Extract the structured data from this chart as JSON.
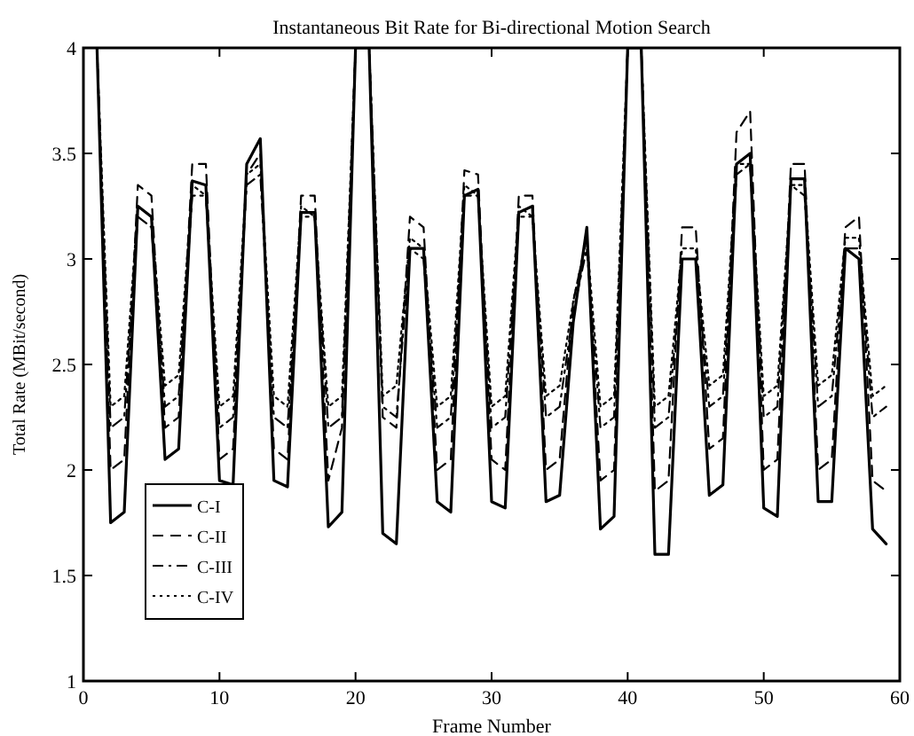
{
  "chart_data": {
    "type": "line",
    "title": "Instantaneous Bit Rate for Bi-directional Motion Search",
    "xlabel": "Frame Number",
    "ylabel": "Total Rate (MBit/second)",
    "x": [
      1,
      2,
      3,
      4,
      5,
      6,
      7,
      8,
      9,
      10,
      11,
      12,
      13,
      14,
      15,
      16,
      17,
      18,
      19,
      20,
      21,
      22,
      23,
      24,
      25,
      26,
      27,
      28,
      29,
      30,
      31,
      32,
      33,
      34,
      35,
      36,
      37,
      38,
      39,
      40,
      41,
      42,
      43,
      44,
      45,
      46,
      47,
      48,
      49,
      50,
      51,
      52,
      53,
      54,
      55,
      56,
      57,
      58,
      59
    ],
    "xlim": [
      0,
      60
    ],
    "xticks": [
      0,
      10,
      20,
      30,
      40,
      50,
      60
    ],
    "ylim": [
      1,
      4
    ],
    "yticks": [
      1,
      1.5,
      2,
      2.5,
      3,
      3.5,
      4
    ],
    "grid": false,
    "legend": "bottom left",
    "marker": "none",
    "series": [
      {
        "name": "C-I",
        "color": "#000000",
        "line_style": "solid",
        "values": [
          4,
          1.75,
          1.8,
          3.25,
          3.2,
          2.05,
          2.1,
          3.37,
          3.35,
          1.95,
          1.93,
          3.45,
          3.57,
          1.95,
          1.92,
          3.22,
          3.22,
          1.73,
          1.8,
          4,
          4,
          1.7,
          1.65,
          3.05,
          3.05,
          1.85,
          1.8,
          3.3,
          3.33,
          1.85,
          1.82,
          3.22,
          3.25,
          1.85,
          1.88,
          2.7,
          3.15,
          1.72,
          1.78,
          4,
          4,
          1.6,
          1.6,
          3,
          3,
          1.88,
          1.93,
          3.45,
          3.5,
          1.82,
          1.78,
          3.38,
          3.38,
          1.85,
          1.85,
          3.05,
          3,
          1.72,
          1.65
        ]
      },
      {
        "name": "C-II",
        "color": "#000000",
        "line_style": "dashed",
        "values": [
          4,
          2,
          2.05,
          3.35,
          3.3,
          2.2,
          2.25,
          3.45,
          3.45,
          2.05,
          2.1,
          3.4,
          3.5,
          2.1,
          2.05,
          3.3,
          3.3,
          1.95,
          2.2,
          4,
          4,
          2.25,
          2.2,
          3.2,
          3.15,
          2,
          2.05,
          3.42,
          3.4,
          2.05,
          2,
          3.3,
          3.3,
          2,
          2.05,
          2.8,
          3.1,
          1.95,
          2,
          4,
          4,
          1.9,
          1.95,
          3.15,
          3.15,
          2.1,
          2.15,
          3.6,
          3.7,
          2,
          2.05,
          3.45,
          3.45,
          2,
          2.05,
          3.15,
          3.2,
          1.95,
          1.9
        ]
      },
      {
        "name": "C-III",
        "color": "#000000",
        "line_style": "dashdot",
        "values": [
          4,
          2.2,
          2.25,
          3.2,
          3.15,
          2.3,
          2.35,
          3.3,
          3.3,
          2.2,
          2.25,
          3.35,
          3.4,
          2.25,
          2.2,
          3.2,
          3.2,
          2.2,
          2.25,
          4,
          4,
          2.3,
          2.25,
          3.05,
          3,
          2.2,
          2.25,
          3.3,
          3.3,
          2.2,
          2.25,
          3.2,
          3.2,
          2.25,
          2.3,
          2.75,
          3.05,
          2.2,
          2.25,
          4,
          4,
          2.2,
          2.25,
          3,
          3,
          2.3,
          2.35,
          3.4,
          3.45,
          2.25,
          2.3,
          3.35,
          3.3,
          2.3,
          2.35,
          3.05,
          3.05,
          2.25,
          2.3
        ]
      },
      {
        "name": "C-IV",
        "color": "#000000",
        "line_style": "dotted",
        "values": [
          4,
          2.3,
          2.35,
          3.25,
          3.2,
          2.4,
          2.45,
          3.35,
          3.3,
          2.3,
          2.35,
          3.4,
          3.45,
          2.35,
          2.3,
          3.25,
          3.2,
          2.3,
          2.35,
          4,
          4,
          2.35,
          2.4,
          3.1,
          3.05,
          2.3,
          2.35,
          3.35,
          3.3,
          2.3,
          2.35,
          3.25,
          3.2,
          2.35,
          2.4,
          2.8,
          3.1,
          2.3,
          2.35,
          4,
          4,
          2.3,
          2.35,
          3.05,
          3.05,
          2.4,
          2.45,
          3.45,
          3.45,
          2.35,
          2.4,
          3.35,
          3.35,
          2.4,
          2.45,
          3.1,
          3.1,
          2.35,
          2.4
        ]
      }
    ]
  }
}
